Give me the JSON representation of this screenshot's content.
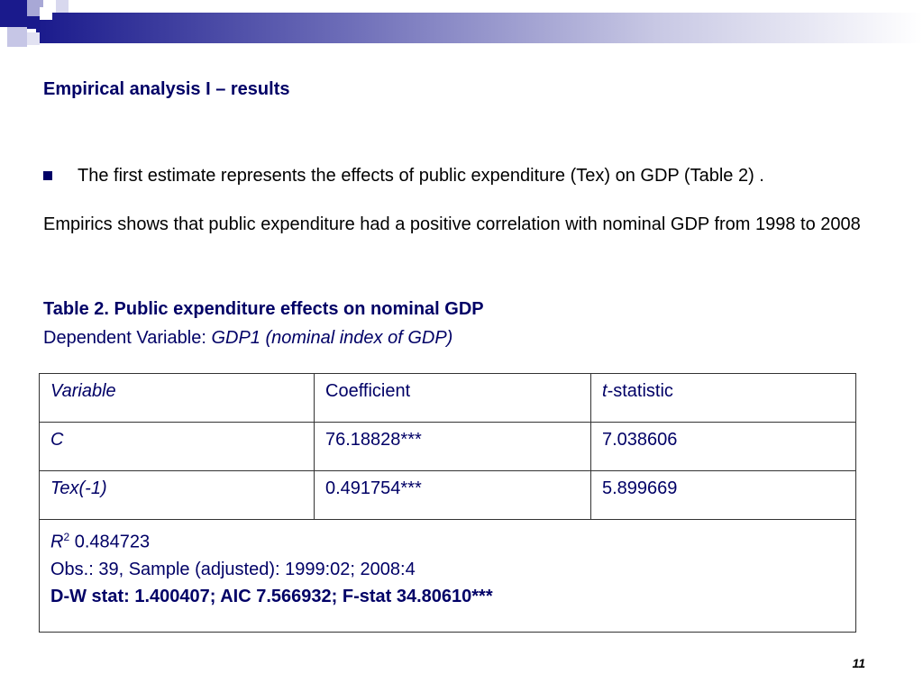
{
  "slide": {
    "title": "Empirical analysis I – results",
    "bullet": "The first estimate represents the effects of public expenditure (Tex) on GDP (Table 2) .",
    "paragraph": "Empirics shows that public expenditure had a positive correlation with nominal GDP from 1998 to 2008",
    "table_caption": "Table 2.  Public expenditure effects on nominal GDP",
    "dependent_label": "Dependent Variable: ",
    "dependent_value": "GDP1 (nominal index of GDP)",
    "page_number": "11"
  },
  "table": {
    "headers": {
      "variable": "Variable",
      "coefficient": "Coefficient",
      "t_prefix": "t",
      "t_suffix": "-statistic"
    },
    "rows": [
      {
        "variable": "C",
        "coefficient": "76.18828***",
        "t_stat": "7.038606"
      },
      {
        "variable": "Tex(-1)",
        "coefficient": "0.491754***",
        "t_stat": "5.899669"
      }
    ],
    "summary": {
      "r2_symbol": "R",
      "r2_sup": "2",
      "r2_value": " 0.484723",
      "obs": "Obs.: 39, Sample (adjusted): 1999:02; 2008:4",
      "stats": "D-W stat: 1.400407; AIC 7.566932; F-stat 34.80610***"
    }
  },
  "colors": {
    "title": "#000066",
    "header_bar_start": "#1a1a8c"
  }
}
